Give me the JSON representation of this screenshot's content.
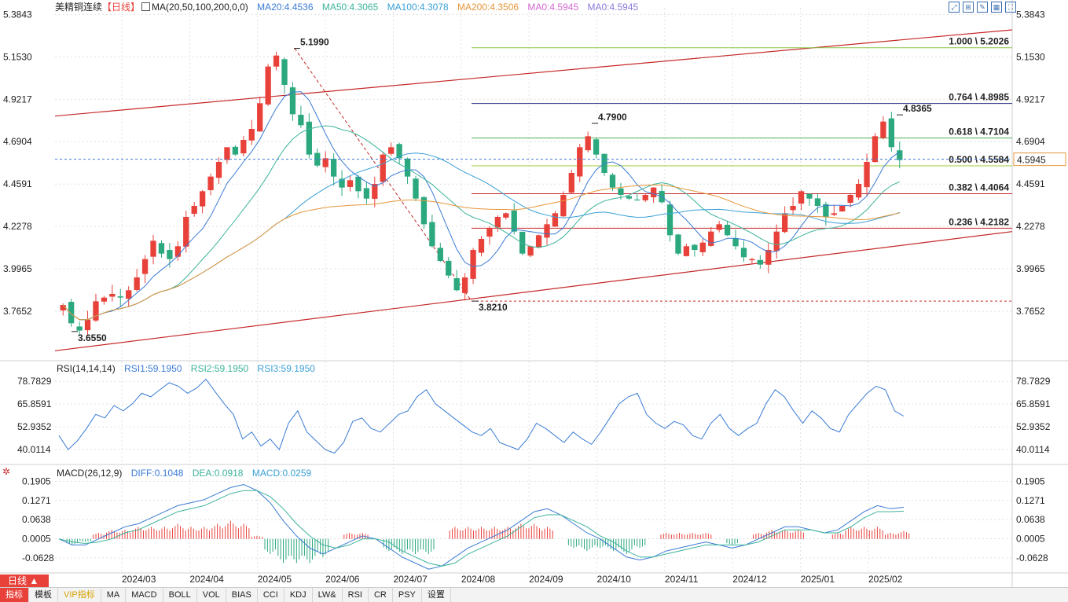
{
  "header": {
    "title": "美精铜连续",
    "period": "【日线】",
    "ma_label": "MA(20,50,100,200,0,0)",
    "ma_values": [
      {
        "text": "MA20:4.4536",
        "color": "#3a7bd5"
      },
      {
        "text": "MA50:4.3065",
        "color": "#3cb39b"
      },
      {
        "text": "MA100:4.3078",
        "color": "#3aa0d8"
      },
      {
        "text": "MA200:4.3506",
        "color": "#e6963a"
      },
      {
        "text": "MA0:4.5945",
        "color": "#d26ad1"
      },
      {
        "text": "MA0:4.5945",
        "color": "#8a7ad8"
      }
    ]
  },
  "rsi_header": {
    "label": "RSI(14,14,14)",
    "values": [
      {
        "text": "RSI1:59.1950",
        "color": "#3a7bd5"
      },
      {
        "text": "RSI2:59.1950",
        "color": "#3cb39b"
      },
      {
        "text": "RSI3:59.1950",
        "color": "#3aa0d8"
      }
    ]
  },
  "macd_header": {
    "label": "MACD(26,12,9)",
    "values": [
      {
        "text": "DIFF:0.1048",
        "color": "#3a7bd5"
      },
      {
        "text": "DEA:0.0918",
        "color": "#3cb39b"
      },
      {
        "text": "MACD:0.0259",
        "color": "#3aa0d8"
      }
    ]
  },
  "chart_data": [
    {
      "type": "candlestick",
      "title": "美精铜连续【日线】",
      "ylim": [
        3.5,
        5.42
      ],
      "y_ticks": [
        "5.3843",
        "5.1530",
        "4.9217",
        "4.6904",
        "4.4591",
        "4.2278",
        "3.9965",
        "3.7652"
      ],
      "x_ticks": [
        "2024/03",
        "2024/04",
        "2024/05",
        "2024/06",
        "2024/07",
        "2024/08",
        "2024/09",
        "2024/10",
        "2024/11",
        "2024/12",
        "2025/01",
        "2025/02"
      ],
      "key_points": [
        {
          "label": "3.6550",
          "value": 3.655
        },
        {
          "label": "5.1990",
          "value": 5.199
        },
        {
          "label": "3.8210",
          "value": 3.821
        },
        {
          "label": "4.7900",
          "value": 4.79
        },
        {
          "label": "4.8365",
          "value": 4.8365
        }
      ],
      "fibonacci": [
        {
          "label": "1.000 \\ 5.2026",
          "value": 5.2026,
          "color": "#8bc34a"
        },
        {
          "label": "0.764 \\ 4.8985",
          "value": 4.8985,
          "color": "#1a237e"
        },
        {
          "label": "0.618 \\ 4.7104",
          "value": 4.7104,
          "color": "#4caf50"
        },
        {
          "label": "0.500 \\ 4.5584",
          "value": 4.5584,
          "color": "#9ccc3a"
        },
        {
          "label": "0.382 \\ 4.4064",
          "value": 4.4064,
          "color": "#c62828"
        },
        {
          "label": "0.236 \\ 4.2182",
          "value": 4.2182,
          "color": "#c62828"
        }
      ],
      "last_price": {
        "label": "4.5945",
        "value": 4.5945
      },
      "price_path": [
        3.8,
        3.7,
        3.66,
        3.72,
        3.82,
        3.84,
        3.86,
        3.84,
        3.88,
        3.95,
        4.05,
        4.15,
        4.08,
        4.05,
        4.12,
        4.28,
        4.34,
        4.42,
        4.5,
        4.58,
        4.66,
        4.62,
        4.7,
        4.76,
        4.9,
        5.1,
        5.16,
        5.0,
        4.84,
        4.78,
        4.62,
        4.56,
        4.6,
        4.5,
        4.44,
        4.48,
        4.42,
        4.38,
        4.46,
        4.62,
        4.66,
        4.6,
        4.5,
        4.38,
        4.24,
        4.12,
        4.04,
        3.96,
        3.88,
        3.95,
        4.1,
        4.16,
        4.22,
        4.28,
        4.3,
        4.2,
        4.08,
        4.12,
        4.18,
        4.24,
        4.3,
        4.4,
        4.52,
        4.66,
        4.72,
        4.62,
        4.52,
        4.44,
        4.4,
        4.38,
        4.37,
        4.4,
        4.44,
        4.36,
        4.18,
        4.08,
        4.12,
        4.1,
        4.14,
        4.2,
        4.24,
        4.18,
        4.12,
        4.06,
        4.05,
        4.02,
        4.1,
        4.2,
        4.3,
        4.34,
        4.42,
        4.38,
        4.34,
        4.28,
        4.3,
        4.34,
        4.4,
        4.46,
        4.58,
        4.72,
        4.8,
        4.66,
        4.59
      ]
    },
    {
      "type": "line",
      "title": "RSI(14,14,14)",
      "ylim": [
        32,
        82
      ],
      "y_ticks": [
        "78.7829",
        "65.8591",
        "52.9352",
        "40.0114"
      ],
      "series": [
        {
          "name": "RSI1",
          "values": [
            48,
            40,
            45,
            52,
            60,
            58,
            65,
            62,
            66,
            72,
            70,
            74,
            78,
            76,
            72,
            75,
            80,
            73,
            66,
            60,
            46,
            50,
            42,
            46,
            40,
            55,
            62,
            50,
            45,
            40,
            38,
            44,
            56,
            58,
            52,
            50,
            55,
            60,
            62,
            70,
            74,
            66,
            62,
            58,
            54,
            50,
            48,
            52,
            44,
            42,
            40,
            46,
            55,
            52,
            48,
            44,
            50,
            46,
            43,
            50,
            58,
            66,
            70,
            72,
            60,
            55,
            52,
            56,
            54,
            48,
            46,
            55,
            60,
            52,
            48,
            52,
            55,
            66,
            74,
            70,
            62,
            55,
            62,
            58,
            52,
            50,
            60,
            66,
            72,
            76,
            74,
            62,
            59
          ]
        }
      ]
    },
    {
      "type": "line",
      "title": "MACD(26,12,9)",
      "ylim": [
        -0.11,
        0.21
      ],
      "y_ticks": [
        "0.1905",
        "0.1271",
        "0.0638",
        "0.0005",
        "-0.0628"
      ],
      "series": [
        {
          "name": "DIFF",
          "values": [
            0.0,
            -0.02,
            -0.02,
            0.0,
            0.02,
            0.04,
            0.05,
            0.07,
            0.09,
            0.11,
            0.12,
            0.13,
            0.15,
            0.17,
            0.18,
            0.16,
            0.12,
            0.06,
            0.01,
            -0.03,
            -0.05,
            -0.03,
            -0.01,
            0.01,
            0.0,
            -0.03,
            -0.06,
            -0.08,
            -0.1,
            -0.09,
            -0.06,
            -0.03,
            -0.01,
            0.01,
            0.03,
            0.06,
            0.09,
            0.1,
            0.08,
            0.05,
            0.02,
            0.0,
            -0.03,
            -0.06,
            -0.07,
            -0.06,
            -0.04,
            -0.03,
            -0.02,
            -0.01,
            -0.02,
            -0.03,
            -0.02,
            0.0,
            0.02,
            0.04,
            0.04,
            0.03,
            0.02,
            0.03,
            0.06,
            0.09,
            0.11,
            0.1,
            0.105
          ]
        },
        {
          "name": "DEA",
          "values": [
            0.0,
            -0.01,
            -0.015,
            -0.01,
            0.0,
            0.02,
            0.03,
            0.05,
            0.07,
            0.09,
            0.1,
            0.11,
            0.13,
            0.15,
            0.16,
            0.16,
            0.14,
            0.1,
            0.05,
            0.01,
            -0.02,
            -0.03,
            -0.02,
            0.0,
            0.0,
            -0.01,
            -0.04,
            -0.06,
            -0.08,
            -0.09,
            -0.08,
            -0.05,
            -0.03,
            -0.01,
            0.01,
            0.04,
            0.07,
            0.08,
            0.08,
            0.06,
            0.04,
            0.01,
            -0.01,
            -0.04,
            -0.06,
            -0.06,
            -0.05,
            -0.04,
            -0.03,
            -0.02,
            -0.02,
            -0.02,
            -0.02,
            -0.01,
            0.01,
            0.03,
            0.03,
            0.03,
            0.02,
            0.02,
            0.04,
            0.07,
            0.09,
            0.09,
            0.092
          ]
        },
        {
          "name": "MACD",
          "values": [
            0.0,
            -0.02,
            -0.01,
            0.02,
            0.03,
            0.03,
            0.04,
            0.04,
            0.04,
            0.05,
            0.04,
            0.04,
            0.05,
            0.06,
            0.05,
            0.01,
            -0.05,
            -0.08,
            -0.08,
            -0.08,
            -0.06,
            0.0,
            0.02,
            0.02,
            0.0,
            -0.04,
            -0.05,
            -0.05,
            -0.05,
            0.0,
            0.04,
            0.04,
            0.04,
            0.04,
            0.04,
            0.05,
            0.05,
            0.04,
            0.0,
            -0.03,
            -0.04,
            -0.03,
            -0.04,
            -0.05,
            -0.03,
            0.0,
            0.02,
            0.02,
            0.02,
            0.02,
            0.0,
            -0.02,
            0.0,
            0.02,
            0.03,
            0.03,
            0.03,
            0.0,
            0.0,
            0.02,
            0.04,
            0.04,
            0.04,
            0.02,
            0.026
          ]
        }
      ]
    }
  ],
  "toolbar": {
    "period_button": "日线 ▲",
    "items": [
      "指标",
      "模板",
      "VIP指标",
      "MA",
      "MACD",
      "BOLL",
      "VOL",
      "BIAS",
      "CCI",
      "KDJ",
      "LW&",
      "RSI",
      "CR",
      "PSY",
      "设置"
    ]
  },
  "colors": {
    "up": "#e8413a",
    "down": "#2ba87e",
    "grid": "#e0e0e0"
  }
}
